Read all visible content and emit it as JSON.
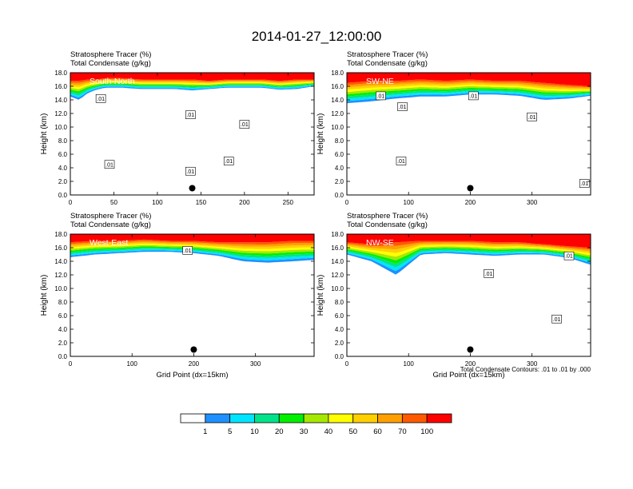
{
  "figure": {
    "title": "2014-01-27_12:00:00",
    "header_line1": "Stratosphere Tracer   (%)",
    "header_line2": "Total Condensate   (g/kg)",
    "ylabel": "Height (km)",
    "xlabel": "Grid Point (dx=15km)",
    "contour_note": "Total Condensate Contours: .01 to .01 by .000",
    "contour_label": ".01"
  },
  "colors": {
    "levels": [
      "#ffffff",
      "#1e90ff",
      "#00e5ff",
      "#00e38b",
      "#00f000",
      "#a6e800",
      "#ffff00",
      "#ffd000",
      "#ffa000",
      "#ff5a00",
      "#ff0000"
    ],
    "contour": "#000000",
    "marker": "#000000"
  },
  "colorbar": {
    "tick_labels": [
      "1",
      "5",
      "10",
      "20",
      "30",
      "40",
      "50",
      "60",
      "70",
      "100"
    ]
  },
  "chart_data": [
    {
      "type": "heatmap",
      "panel": "South-North",
      "xlim": [
        0,
        280
      ],
      "ylim": [
        0,
        18
      ],
      "xticks": [
        0,
        50,
        100,
        150,
        200,
        250
      ],
      "yticks": [
        0.0,
        2.0,
        4.0,
        6.0,
        8.0,
        10.0,
        12.0,
        14.0,
        16.0,
        18.0
      ],
      "tracer_profile": {
        "x": [
          0,
          10,
          20,
          30,
          40,
          60,
          80,
          100,
          120,
          140,
          160,
          180,
          200,
          220,
          240,
          260,
          270,
          280
        ],
        "tracer_base_km": [
          14.5,
          14.0,
          15.0,
          15.5,
          15.8,
          15.8,
          15.6,
          15.6,
          15.6,
          15.4,
          15.6,
          15.8,
          15.8,
          15.8,
          15.5,
          15.6,
          15.8,
          16.0
        ],
        "red_base_km": [
          16.8,
          16.8,
          17.0,
          17.0,
          17.2,
          17.2,
          17.0,
          17.0,
          17.0,
          17.0,
          16.8,
          17.0,
          17.0,
          17.0,
          16.8,
          17.0,
          17.0,
          17.0
        ]
      },
      "contour_labels_x": [
        35,
        45,
        138,
        138,
        200,
        182
      ],
      "contour_labels_y_km": [
        14.2,
        4.5,
        11.8,
        3.5,
        10.4,
        5.0
      ],
      "marker": {
        "x": 140,
        "y_km": 1.0
      }
    },
    {
      "type": "heatmap",
      "panel": "SW-NE",
      "xlim": [
        0,
        395
      ],
      "ylim": [
        0,
        18
      ],
      "xticks": [
        0,
        100,
        200,
        300
      ],
      "yticks": [
        0.0,
        2.0,
        4.0,
        6.0,
        8.0,
        10.0,
        12.0,
        14.0,
        16.0,
        18.0
      ],
      "tracer_profile": {
        "x": [
          0,
          40,
          80,
          120,
          160,
          200,
          240,
          280,
          320,
          360,
          395
        ],
        "tracer_base_km": [
          13.5,
          13.8,
          14.2,
          14.5,
          14.5,
          14.8,
          14.8,
          14.6,
          14.0,
          14.2,
          14.6
        ],
        "red_base_km": [
          16.5,
          16.8,
          16.8,
          17.0,
          16.8,
          17.0,
          16.8,
          16.8,
          16.5,
          16.2,
          16.0
        ]
      },
      "contour_labels_x": [
        55,
        90,
        205,
        300,
        88,
        385
      ],
      "contour_labels_y_km": [
        14.6,
        13.0,
        14.6,
        11.5,
        5.0,
        1.7
      ],
      "marker": {
        "x": 200,
        "y_km": 1.0
      }
    },
    {
      "type": "heatmap",
      "panel": "West-East",
      "xlim": [
        0,
        395
      ],
      "ylim": [
        0,
        18
      ],
      "xticks": [
        0,
        100,
        200,
        300
      ],
      "yticks": [
        0.0,
        2.0,
        4.0,
        6.0,
        8.0,
        10.0,
        12.0,
        14.0,
        16.0,
        18.0
      ],
      "tracer_profile": {
        "x": [
          0,
          40,
          80,
          120,
          160,
          200,
          240,
          280,
          320,
          360,
          395
        ],
        "tracer_base_km": [
          14.6,
          15.0,
          15.2,
          15.4,
          15.4,
          15.2,
          14.8,
          14.0,
          13.8,
          14.0,
          14.2
        ],
        "red_base_km": [
          16.8,
          17.0,
          17.0,
          17.2,
          17.0,
          17.0,
          16.8,
          16.8,
          16.8,
          17.0,
          17.0
        ]
      },
      "contour_labels_x": [
        190
      ],
      "contour_labels_y_km": [
        15.6
      ],
      "marker": {
        "x": 200,
        "y_km": 1.0
      }
    },
    {
      "type": "heatmap",
      "panel": "NW-SE",
      "xlim": [
        0,
        395
      ],
      "ylim": [
        0,
        18
      ],
      "xticks": [
        0,
        100,
        200,
        300
      ],
      "yticks": [
        0.0,
        2.0,
        4.0,
        6.0,
        8.0,
        10.0,
        12.0,
        14.0,
        16.0,
        18.0
      ],
      "tracer_profile": {
        "x": [
          0,
          40,
          80,
          120,
          160,
          200,
          240,
          280,
          320,
          360,
          395
        ],
        "tracer_base_km": [
          15.0,
          14.0,
          12.0,
          15.0,
          15.2,
          15.0,
          14.8,
          15.0,
          15.0,
          14.5,
          13.5
        ],
        "red_base_km": [
          16.8,
          16.5,
          16.8,
          17.0,
          17.0,
          17.0,
          16.8,
          16.8,
          16.5,
          16.2,
          16.0
        ]
      },
      "contour_labels_x": [
        230,
        360,
        340
      ],
      "contour_labels_y_km": [
        12.2,
        14.8,
        5.5
      ],
      "marker": {
        "x": 200,
        "y_km": 1.0
      }
    }
  ]
}
